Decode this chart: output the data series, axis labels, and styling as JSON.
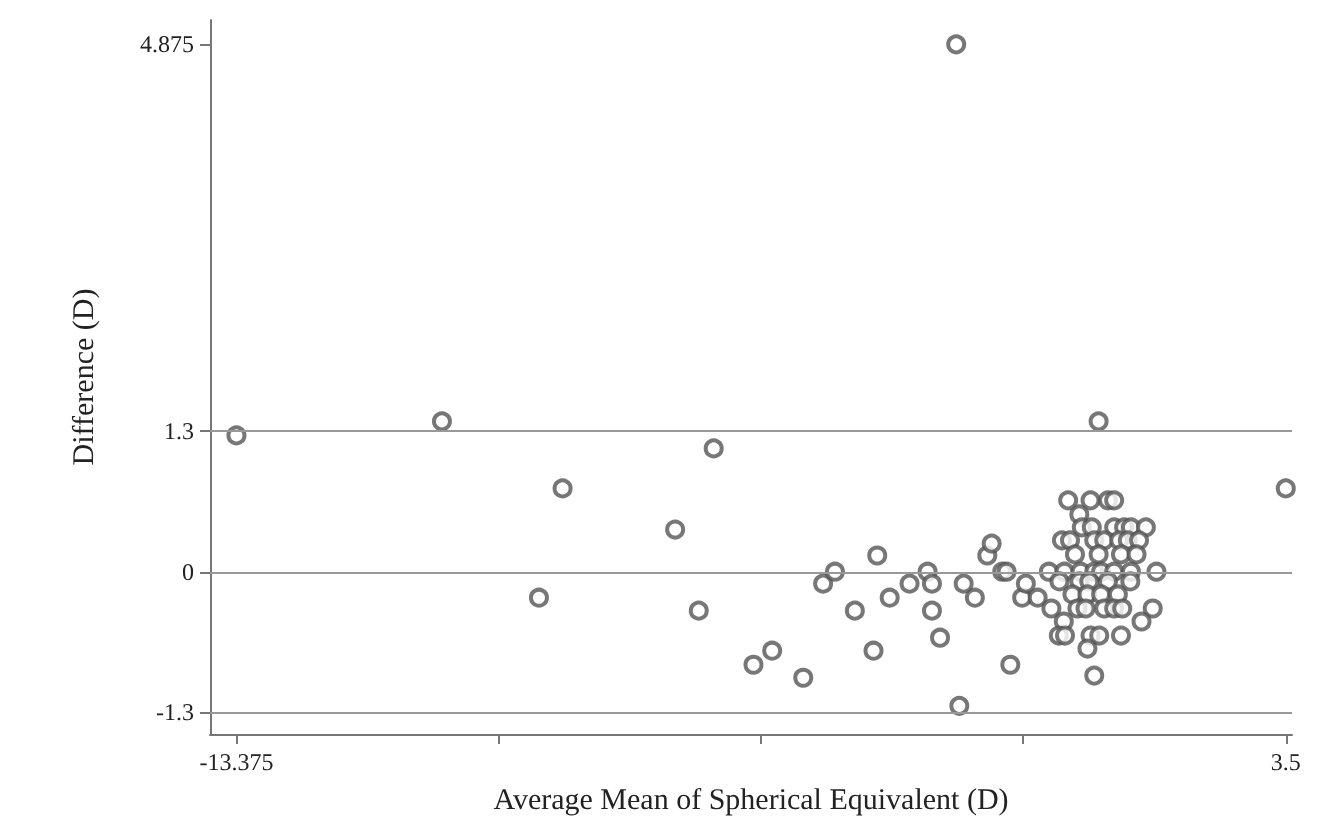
{
  "chart_data": {
    "type": "scatter",
    "xlabel": "Average Mean of Spherical Equivalent (D)",
    "ylabel": "Difference (D)",
    "series": [
      {
        "color": "#555555",
        "x": [
          -13.375,
          -10.07,
          -8.13,
          -8.51,
          -6.32,
          -5.94,
          -5.7,
          -5.06,
          -4.76,
          -4.26,
          -3.94,
          -3.75,
          -3.43,
          -3.13,
          -3.07,
          -2.87,
          -2.55,
          -2.26,
          -2.19,
          -2.19,
          -2.06,
          -1.8,
          -1.75,
          -1.68,
          -1.5,
          -1.3,
          -1.23,
          -1.06,
          -0.99,
          -0.93,
          -0.74,
          -0.68,
          -0.49,
          0.49,
          3.5,
          0.0,
          0.36,
          0.64,
          0.74,
          0.18,
          0.22,
          0.38,
          0.74,
          0.9,
          1.01,
          1.25,
          -0.1,
          0.03,
          0.42,
          0.58,
          0.82,
          0.96,
          1.14,
          0.11,
          0.49,
          0.85,
          1.1,
          -0.31,
          -0.06,
          0.2,
          0.42,
          0.53,
          0.74,
          1.01,
          1.42,
          -0.14,
          0.18,
          0.34,
          0.64,
          1.0,
          0.07,
          0.31,
          0.53,
          0.8,
          -0.27,
          0.15,
          0.28,
          0.58,
          0.74,
          0.87,
          1.36,
          -0.07,
          1.18,
          -0.15,
          -0.05,
          0.36,
          0.5,
          0.85,
          0.31,
          0.42
        ],
        "values": [
          1.26,
          1.39,
          0.77,
          -0.24,
          0.39,
          -0.36,
          1.14,
          -0.86,
          -0.73,
          -0.98,
          -0.11,
          0,
          -0.36,
          -0.73,
          0.15,
          -0.24,
          -0.11,
          0,
          -0.11,
          -0.36,
          -0.61,
          4.875,
          -1.24,
          -0.11,
          -0.24,
          0.15,
          0.26,
          0,
          0,
          -0.86,
          -0.24,
          -0.11,
          -0.24,
          1.39,
          0.77,
          0.66,
          0.66,
          0.66,
          0.66,
          0.53,
          0.41,
          0.41,
          0.41,
          0.41,
          0.41,
          0.41,
          0.29,
          0.29,
          0.29,
          0.29,
          0.29,
          0.29,
          0.29,
          0.16,
          0.16,
          0.16,
          0.16,
          0,
          0,
          0,
          0,
          0,
          0,
          0,
          0,
          -0.09,
          -0.09,
          -0.09,
          -0.09,
          -0.09,
          -0.21,
          -0.21,
          -0.21,
          -0.21,
          -0.34,
          -0.34,
          -0.34,
          -0.34,
          -0.34,
          -0.34,
          -0.34,
          -0.46,
          -0.46,
          -0.59,
          -0.59,
          -0.59,
          -0.59,
          -0.59,
          -0.71,
          -0.96
        ]
      }
    ],
    "xlim": [
      -13.8,
      3.6
    ],
    "xticks": [
      -13.375,
      {
        "value": -9.15625,
        "label": null
      },
      {
        "value": -4.9375,
        "label": null
      },
      {
        "value": -0.71875,
        "label": null
      },
      3.5
    ],
    "ylim": [
      -1.5,
      5.1
    ],
    "yticks": [
      4.875,
      1.3,
      0,
      -1.3
    ],
    "ref_lines": [
      {
        "axis": "y",
        "value": 1.3,
        "color": "#999999"
      },
      {
        "axis": "y",
        "value": 0,
        "color": "#999999"
      },
      {
        "axis": "y",
        "value": -1.3,
        "color": "#999999"
      }
    ],
    "grid": false,
    "marker": "circle"
  }
}
